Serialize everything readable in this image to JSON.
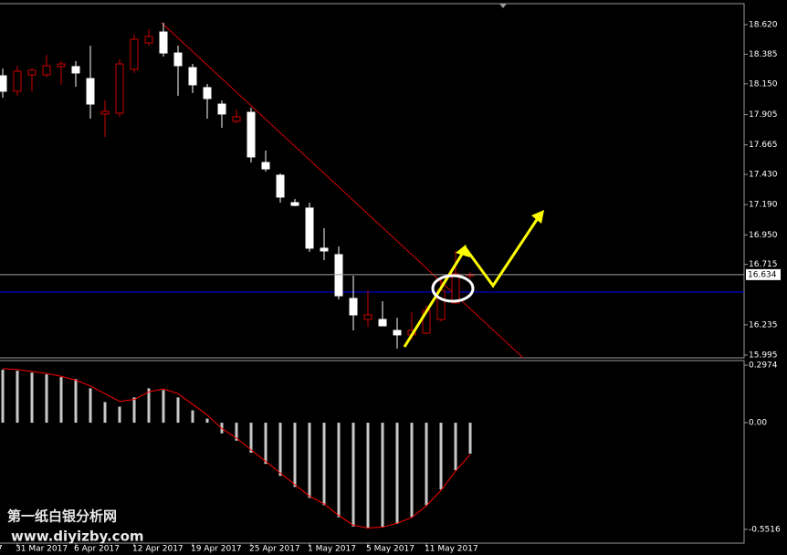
{
  "chart_data": [
    {
      "type": "candlestick",
      "first_x_label": "7",
      "categories": [
        null,
        "31 Mar 2017",
        null,
        null,
        null,
        "6 Apr 2017",
        null,
        null,
        null,
        "12 Apr 2017",
        null,
        null,
        null,
        "19 Apr 2017",
        null,
        null,
        null,
        "25 Apr 2017",
        null,
        null,
        null,
        "1 May 2017",
        null,
        null,
        null,
        "5 May 2017",
        null,
        null,
        null,
        "11 May 2017",
        null,
        null,
        null
      ],
      "open": [
        18.214,
        18.091,
        18.221,
        18.221,
        18.287,
        18.287,
        18.192,
        17.91,
        17.917,
        18.265,
        18.475,
        18.562,
        18.395,
        18.279,
        18.12,
        17.989,
        17.852,
        17.924,
        17.525,
        17.424,
        17.206,
        17.163,
        16.844,
        16.793,
        16.445,
        16.278,
        16.278,
        16.191,
        16.155,
        16.169,
        16.278,
        16.408,
        16.626
      ],
      "high": [
        18.272,
        18.294,
        18.272,
        18.381,
        18.33,
        18.33,
        18.453,
        18.018,
        18.345,
        18.54,
        18.584,
        18.635,
        18.453,
        18.308,
        18.149,
        18.018,
        17.946,
        17.96,
        17.619,
        17.438,
        17.235,
        17.206,
        17.003,
        16.858,
        16.626,
        16.51,
        16.423,
        16.292,
        16.336,
        16.387,
        16.604,
        16.822,
        16.655
      ],
      "low": [
        18.04,
        18.055,
        18.091,
        18.2,
        18.142,
        18.127,
        17.873,
        17.728,
        17.888,
        18.236,
        18.453,
        18.366,
        18.055,
        18.076,
        17.873,
        17.801,
        17.837,
        17.525,
        17.453,
        17.206,
        17.177,
        16.815,
        16.749,
        16.437,
        16.191,
        16.22,
        16.227,
        16.046,
        16.118,
        16.162,
        16.263,
        16.408,
        16.604
      ],
      "close": [
        18.091,
        18.25,
        18.258,
        18.294,
        18.308,
        18.236,
        17.989,
        17.931,
        18.308,
        18.504,
        18.526,
        18.395,
        18.294,
        18.142,
        18.033,
        17.91,
        17.888,
        17.569,
        17.474,
        17.25,
        17.184,
        16.844,
        16.822,
        16.466,
        16.314,
        16.314,
        16.227,
        16.155,
        16.191,
        16.35,
        16.51,
        16.64,
        16.634
      ],
      "up_color": "#cc0000",
      "down_color": "#ffffff",
      "current_price": 16.634,
      "ylim": [
        15.973,
        18.787
      ],
      "yticks": [
        {
          "value": 18.62,
          "label": "18.620"
        },
        {
          "value": 18.385,
          "label": "18.385"
        },
        {
          "value": 18.15,
          "label": "18.150"
        },
        {
          "value": 17.905,
          "label": "17.905"
        },
        {
          "value": 17.665,
          "label": "17.665"
        },
        {
          "value": 17.43,
          "label": "17.430"
        },
        {
          "value": 17.19,
          "label": "17.190"
        },
        {
          "value": 16.95,
          "label": "16.950"
        },
        {
          "value": 16.715,
          "label": "16.715"
        },
        {
          "value": 16.235,
          "label": "16.235"
        },
        {
          "value": 15.995,
          "label": "15.995"
        }
      ]
    },
    {
      "type": "bar",
      "values": [
        0.274,
        0.269,
        0.259,
        0.25,
        0.236,
        0.226,
        0.178,
        0.107,
        0.083,
        0.131,
        0.178,
        0.169,
        0.131,
        0.064,
        0.021,
        -0.055,
        -0.093,
        -0.155,
        -0.213,
        -0.275,
        -0.332,
        -0.389,
        -0.427,
        -0.489,
        -0.537,
        -0.546,
        -0.542,
        -0.523,
        -0.489,
        -0.427,
        -0.346,
        -0.246,
        -0.16
      ],
      "color": "#c8c8c8",
      "signal": {
        "color": "#ff0000",
        "values": [
          0.28,
          0.275,
          0.265,
          0.255,
          0.24,
          0.22,
          0.19,
          0.15,
          0.11,
          0.12,
          0.16,
          0.175,
          0.15,
          0.095,
          0.04,
          -0.03,
          -0.08,
          -0.14,
          -0.2,
          -0.26,
          -0.32,
          -0.38,
          -0.42,
          -0.48,
          -0.53,
          -0.545,
          -0.54,
          -0.52,
          -0.49,
          -0.43,
          -0.35,
          -0.25,
          -0.165
        ]
      },
      "ylim": [
        -0.623,
        0.3215
      ],
      "yticks": [
        0.2974,
        {
          "value": 0,
          "label": "0.00"
        },
        -0.5516
      ]
    }
  ],
  "watermark": {
    "title": "第一纸白银分析网",
    "url": "www.diyizby.com"
  }
}
